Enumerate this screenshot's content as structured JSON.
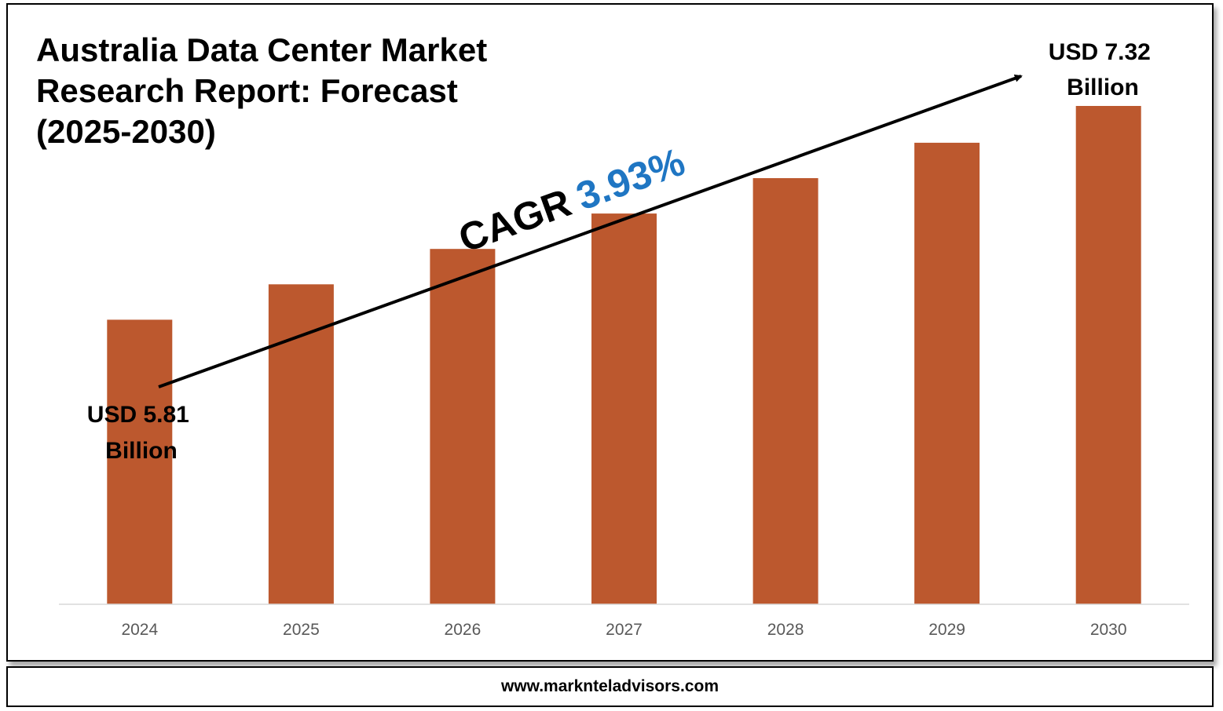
{
  "title": "Australia Data Center Market Research Report: Forecast (2025-2030)",
  "footer": "www.marknteladvisors.com",
  "cagr": {
    "label": "CAGR",
    "value": "3.93%",
    "value_color": "#1F76C3"
  },
  "annotations": {
    "start": [
      "USD 5.81",
      "Billion"
    ],
    "end": [
      "USD 7.32",
      "Billion"
    ]
  },
  "chart_data": {
    "type": "bar",
    "categories": [
      "2024",
      "2025",
      "2026",
      "2027",
      "2028",
      "2029",
      "2030"
    ],
    "values": [
      5.81,
      6.06,
      6.31,
      6.56,
      6.81,
      7.06,
      7.32
    ],
    "unit": "USD Billion",
    "ylim": [
      3.8,
      7.32
    ],
    "bar_color": "#BC582E",
    "grid": false,
    "legend": "none"
  }
}
